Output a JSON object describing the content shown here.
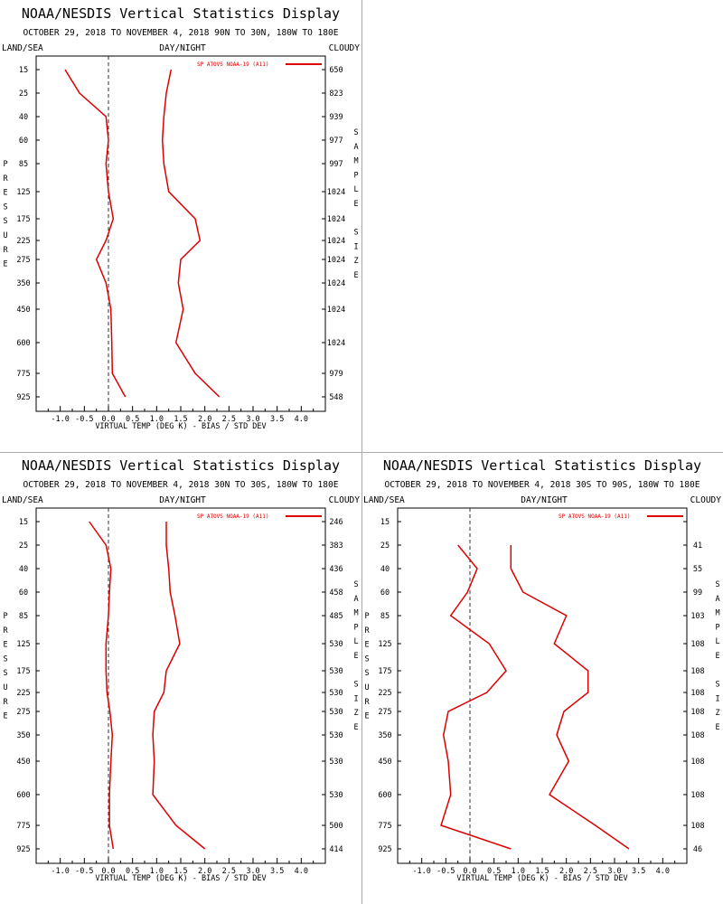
{
  "chart_data": [
    {
      "type": "line",
      "title": "NOAA/NESDIS Vertical Statistics Display",
      "subtitle": "OCTOBER 29, 2018 TO NOVEMBER 4, 2018  90N TO 30N, 180W TO 180E",
      "corner_left": "LAND/SEA",
      "corner_center": "DAY/NIGHT",
      "corner_right": "CLOUDY",
      "ylabel": "PRESSURE",
      "y2label": "SAMPLE SIZE",
      "xlabel": "VIRTUAL TEMP (DEG K) - BIAS / STD DEV",
      "xlim": [
        -1.5,
        4.5
      ],
      "xticks": [
        "-1.0",
        "-0.5",
        "0.0",
        "0.5",
        "1.0",
        "1.5",
        "2.0",
        "2.5",
        "3.0",
        "3.5",
        "4.0"
      ],
      "pressure_levels": [
        "15",
        "25",
        "40",
        "60",
        "85",
        "125",
        "175",
        "225",
        "275",
        "350",
        "450",
        "600",
        "775",
        "925"
      ],
      "sample_size": [
        "650",
        "823",
        "939",
        "977",
        "997",
        "1024",
        "1024",
        "1024",
        "1024",
        "1024",
        "1024",
        "1024",
        "979",
        "548"
      ],
      "legend": "SP ATOVS NOAA-19 (A11)",
      "series": [
        {
          "name": "bias",
          "values": [
            -0.9,
            -0.6,
            -0.05,
            0.0,
            -0.05,
            0.0,
            0.1,
            -0.05,
            -0.25,
            -0.05,
            0.05,
            0.07,
            0.08,
            0.35
          ]
        },
        {
          "name": "stddev",
          "values": [
            1.3,
            1.2,
            1.15,
            1.12,
            1.15,
            1.25,
            1.8,
            1.9,
            1.5,
            1.45,
            1.55,
            1.4,
            1.8,
            2.3
          ]
        }
      ]
    },
    {
      "type": "line",
      "title": "NOAA/NESDIS Vertical Statistics Display",
      "subtitle": "OCTOBER 29, 2018 TO NOVEMBER 4, 2018  30N TO 30S, 180W TO 180E",
      "corner_left": "LAND/SEA",
      "corner_center": "DAY/NIGHT",
      "corner_right": "CLOUDY",
      "ylabel": "PRESSURE",
      "y2label": "SAMPLE SIZE",
      "xlabel": "VIRTUAL TEMP (DEG K) - BIAS / STD DEV",
      "xlim": [
        -1.5,
        4.5
      ],
      "xticks": [
        "-1.0",
        "-0.5",
        "0.0",
        "0.5",
        "1.0",
        "1.5",
        "2.0",
        "2.5",
        "3.0",
        "3.5",
        "4.0"
      ],
      "pressure_levels": [
        "15",
        "25",
        "40",
        "60",
        "85",
        "125",
        "175",
        "225",
        "275",
        "350",
        "450",
        "600",
        "775",
        "925"
      ],
      "sample_size": [
        "246",
        "383",
        "436",
        "458",
        "485",
        "530",
        "530",
        "530",
        "530",
        "530",
        "530",
        "530",
        "500",
        "414"
      ],
      "legend": "SP ATOVS NOAA-19 (A11)",
      "series": [
        {
          "name": "bias",
          "values": [
            -0.4,
            -0.05,
            0.05,
            0.02,
            0.0,
            -0.05,
            -0.05,
            -0.03,
            0.03,
            0.08,
            0.05,
            0.02,
            0.02,
            0.1
          ]
        },
        {
          "name": "stddev",
          "values": [
            1.2,
            1.2,
            1.25,
            1.28,
            1.38,
            1.48,
            1.2,
            1.15,
            0.95,
            0.92,
            0.95,
            0.92,
            1.4,
            2.0
          ]
        }
      ]
    },
    {
      "type": "line",
      "title": "NOAA/NESDIS Vertical Statistics Display",
      "subtitle": "OCTOBER 29, 2018 TO NOVEMBER 4, 2018  30S TO 90S, 180W TO 180E",
      "corner_left": "LAND/SEA",
      "corner_center": "DAY/NIGHT",
      "corner_right": "CLOUDY",
      "ylabel": "PRESSURE",
      "y2label": "SAMPLE SIZE",
      "xlabel": "VIRTUAL TEMP (DEG K) - BIAS / STD DEV",
      "xlim": [
        -1.5,
        4.5
      ],
      "xticks": [
        "-1.0",
        "-0.5",
        "0.0",
        "0.5",
        "1.0",
        "1.5",
        "2.0",
        "2.5",
        "3.0",
        "3.5",
        "4.0"
      ],
      "pressure_levels": [
        "15",
        "25",
        "40",
        "60",
        "85",
        "125",
        "175",
        "225",
        "275",
        "350",
        "450",
        "600",
        "775",
        "925"
      ],
      "sample_size": [
        "",
        "41",
        "55",
        "99",
        "103",
        "108",
        "108",
        "108",
        "108",
        "108",
        "108",
        "108",
        "108",
        "46"
      ],
      "legend": "SP ATOVS NOAA-19 (A11)",
      "series": [
        {
          "name": "bias",
          "values": [
            null,
            -0.25,
            0.15,
            -0.05,
            -0.4,
            0.4,
            0.75,
            0.35,
            -0.45,
            -0.55,
            -0.45,
            -0.4,
            -0.6,
            0.85
          ]
        },
        {
          "name": "stddev",
          "values": [
            null,
            0.85,
            0.85,
            1.1,
            2.0,
            1.75,
            2.45,
            2.45,
            1.95,
            1.8,
            2.05,
            1.65,
            2.6,
            3.3
          ]
        }
      ]
    }
  ]
}
